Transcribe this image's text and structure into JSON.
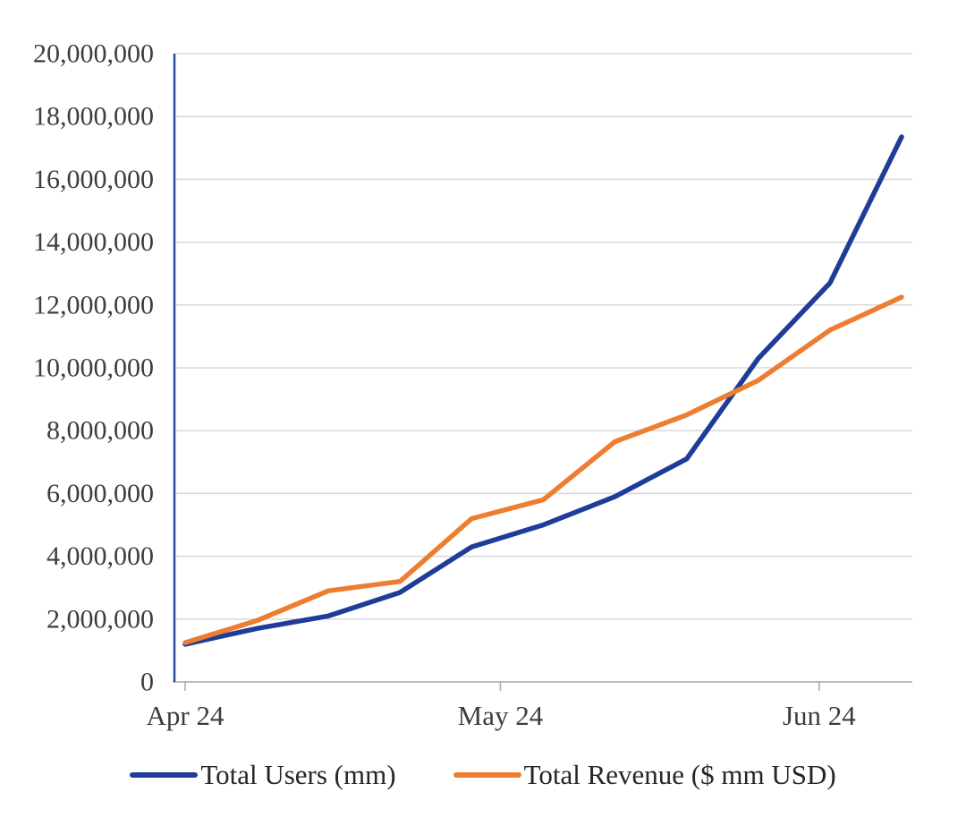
{
  "figure": {
    "background": "#ffffff"
  },
  "axes": {
    "y_axis_color": "#2b4a9e",
    "x_axis_color": "#a6a6a6",
    "grid_color": "#d9d9d9",
    "tick_label_color": "#3d3d3d"
  },
  "chart_data": {
    "type": "line",
    "title": "",
    "xlabel": "",
    "ylabel": "",
    "grid": true,
    "legend_position": "bottom",
    "x_range": [
      -0.15,
      10.15
    ],
    "ylim": [
      0,
      20000000
    ],
    "x": [
      0,
      1,
      2,
      3,
      4,
      5,
      6,
      7,
      8,
      9,
      10
    ],
    "series": [
      {
        "name": "Total Users (mm)",
        "color": "#1e3c98",
        "values": [
          1200000,
          1700000,
          2100000,
          2850000,
          4300000,
          5000000,
          5900000,
          7100000,
          10300000,
          12700000,
          17350000
        ]
      },
      {
        "name": "Total Revenue ($ mm USD)",
        "color": "#ed7d31",
        "values": [
          1250000,
          1950000,
          2900000,
          3200000,
          5200000,
          5800000,
          7650000,
          8500000,
          9600000,
          11200000,
          12250000
        ]
      }
    ],
    "x_ticks": [
      {
        "position": 0,
        "label": "Apr 24"
      },
      {
        "position": 4.4,
        "label": "May 24"
      },
      {
        "position": 8.85,
        "label": "Jun 24"
      }
    ],
    "y_ticks": [
      {
        "value": 0,
        "label": "0"
      },
      {
        "value": 2000000,
        "label": "2,000,000"
      },
      {
        "value": 4000000,
        "label": "4,000,000"
      },
      {
        "value": 6000000,
        "label": "6,000,000"
      },
      {
        "value": 8000000,
        "label": "8,000,000"
      },
      {
        "value": 10000000,
        "label": "10,000,000"
      },
      {
        "value": 12000000,
        "label": "12,000,000"
      },
      {
        "value": 14000000,
        "label": "14,000,000"
      },
      {
        "value": 16000000,
        "label": "16,000,000"
      },
      {
        "value": 18000000,
        "label": "18,000,000"
      },
      {
        "value": 20000000,
        "label": "20,000,000"
      }
    ]
  }
}
